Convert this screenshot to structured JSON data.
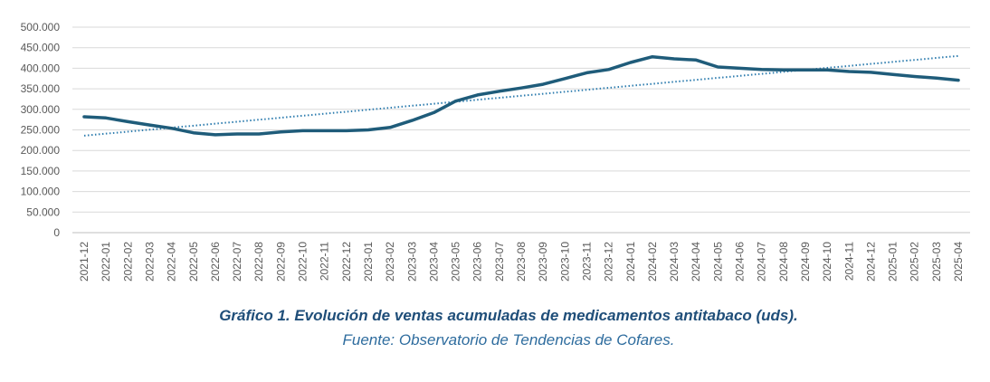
{
  "chart_data": {
    "type": "line",
    "title": "Gráfico 1. Evolución de ventas acumuladas de medicamentos antitabaco (uds).",
    "source": "Fuente: Observatorio de Tendencias de Cofares.",
    "xlabel": "",
    "ylabel": "",
    "ylim": [
      0,
      500000
    ],
    "y_ticks": [
      "0",
      "50.000",
      "100.000",
      "150.000",
      "200.000",
      "250.000",
      "300.000",
      "350.000",
      "400.000",
      "450.000",
      "500.000"
    ],
    "grid": true,
    "legend": "none",
    "categories": [
      "2021-12",
      "2022-01",
      "2022-02",
      "2022-03",
      "2022-04",
      "2022-05",
      "2022-06",
      "2022-07",
      "2022-08",
      "2022-09",
      "2022-10",
      "2022-11",
      "2022-12",
      "2023-01",
      "2023-02",
      "2023-03",
      "2023-04",
      "2023-05",
      "2023-06",
      "2023-07",
      "2023-08",
      "2023-09",
      "2023-10",
      "2023-11",
      "2023-12",
      "2024-01",
      "2024-02",
      "2024-03",
      "2024-04",
      "2024-05",
      "2024-06",
      "2024-07",
      "2024-08",
      "2024-09",
      "2024-10",
      "2024-11",
      "2024-12",
      "2025-01",
      "2025-02",
      "2025-03",
      "2025-04"
    ],
    "series": [
      {
        "values": [
          282000,
          279000,
          270000,
          262000,
          254000,
          243000,
          238000,
          240000,
          240000,
          245000,
          248000,
          248000,
          248000,
          250000,
          256000,
          273000,
          292000,
          320000,
          335000,
          344000,
          352000,
          361000,
          375000,
          389000,
          397000,
          414000,
          428000,
          423000,
          420000,
          403000,
          400000,
          397000,
          396000,
          396000,
          396000,
          392000,
          390000,
          385000,
          380000,
          376000,
          371000
        ],
        "color": "#1F5C7A"
      }
    ],
    "trendline": {
      "type": "linear",
      "start": 236000,
      "end": 430000,
      "color": "#2E7DAF",
      "style": "dotted"
    }
  }
}
